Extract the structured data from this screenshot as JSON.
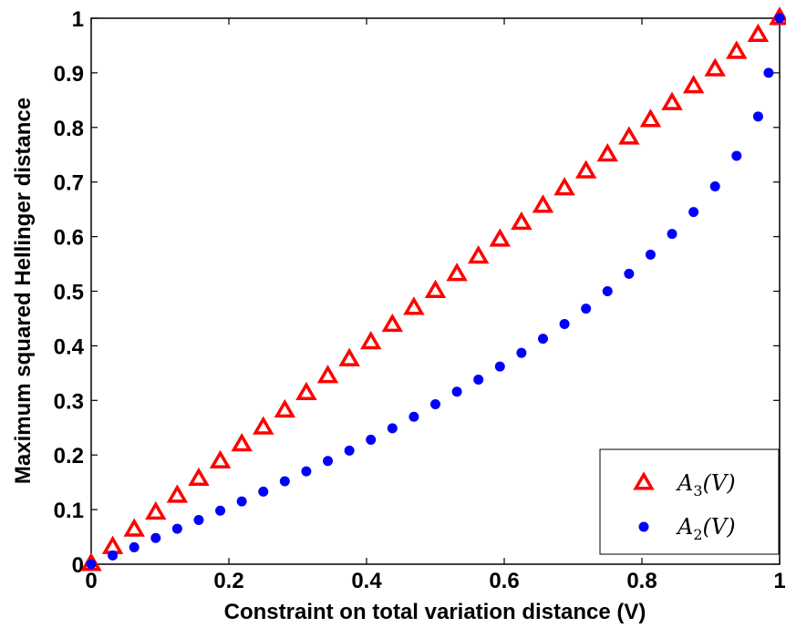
{
  "chart_data": {
    "type": "scatter",
    "xlabel": "Constraint on total variation distance (V)",
    "ylabel": "Maximum squared Hellinger distance",
    "xlim": [
      0,
      1
    ],
    "ylim": [
      0,
      1
    ],
    "xticks": [
      "0",
      "0.2",
      "0.4",
      "0.6",
      "0.8",
      "1"
    ],
    "yticks": [
      "0",
      "0.1",
      "0.2",
      "0.3",
      "0.4",
      "0.5",
      "0.6",
      "0.7",
      "0.8",
      "0.9",
      "1"
    ],
    "grid": false,
    "legend_position": "bottom-right",
    "series": [
      {
        "name": "A3(V)",
        "legend_base": "A",
        "legend_sub": "3",
        "legend_arg": "(V)",
        "marker": "triangle",
        "color": "#ff0000",
        "x": [
          0,
          0.03125,
          0.0625,
          0.09375,
          0.125,
          0.15625,
          0.1875,
          0.21875,
          0.25,
          0.28125,
          0.3125,
          0.34375,
          0.375,
          0.40625,
          0.4375,
          0.46875,
          0.5,
          0.53125,
          0.5625,
          0.59375,
          0.625,
          0.65625,
          0.6875,
          0.71875,
          0.75,
          0.78125,
          0.8125,
          0.84375,
          0.875,
          0.90625,
          0.9375,
          0.96875,
          1
        ],
        "y": [
          0,
          0.031,
          0.063,
          0.094,
          0.125,
          0.156,
          0.188,
          0.219,
          0.25,
          0.281,
          0.313,
          0.344,
          0.375,
          0.406,
          0.438,
          0.469,
          0.5,
          0.531,
          0.563,
          0.594,
          0.625,
          0.656,
          0.688,
          0.719,
          0.75,
          0.781,
          0.813,
          0.844,
          0.875,
          0.906,
          0.938,
          0.969,
          1
        ]
      },
      {
        "name": "A2(V)",
        "legend_base": "A",
        "legend_sub": "2",
        "legend_arg": "(V)",
        "marker": "circle",
        "color": "#0000ff",
        "x": [
          0,
          0.03125,
          0.0625,
          0.09375,
          0.125,
          0.15625,
          0.1875,
          0.21875,
          0.25,
          0.28125,
          0.3125,
          0.34375,
          0.375,
          0.40625,
          0.4375,
          0.46875,
          0.5,
          0.53125,
          0.5625,
          0.59375,
          0.625,
          0.65625,
          0.6875,
          0.71875,
          0.75,
          0.78125,
          0.8125,
          0.84375,
          0.875,
          0.90625,
          0.9375,
          0.96875,
          0.984,
          1
        ],
        "y": [
          0,
          0.016,
          0.031,
          0.048,
          0.065,
          0.081,
          0.098,
          0.115,
          0.133,
          0.152,
          0.17,
          0.189,
          0.208,
          0.228,
          0.249,
          0.27,
          0.293,
          0.316,
          0.338,
          0.362,
          0.387,
          0.413,
          0.44,
          0.468,
          0.5,
          0.532,
          0.567,
          0.605,
          0.645,
          0.692,
          0.748,
          0.82,
          0.9,
          1
        ]
      }
    ]
  }
}
